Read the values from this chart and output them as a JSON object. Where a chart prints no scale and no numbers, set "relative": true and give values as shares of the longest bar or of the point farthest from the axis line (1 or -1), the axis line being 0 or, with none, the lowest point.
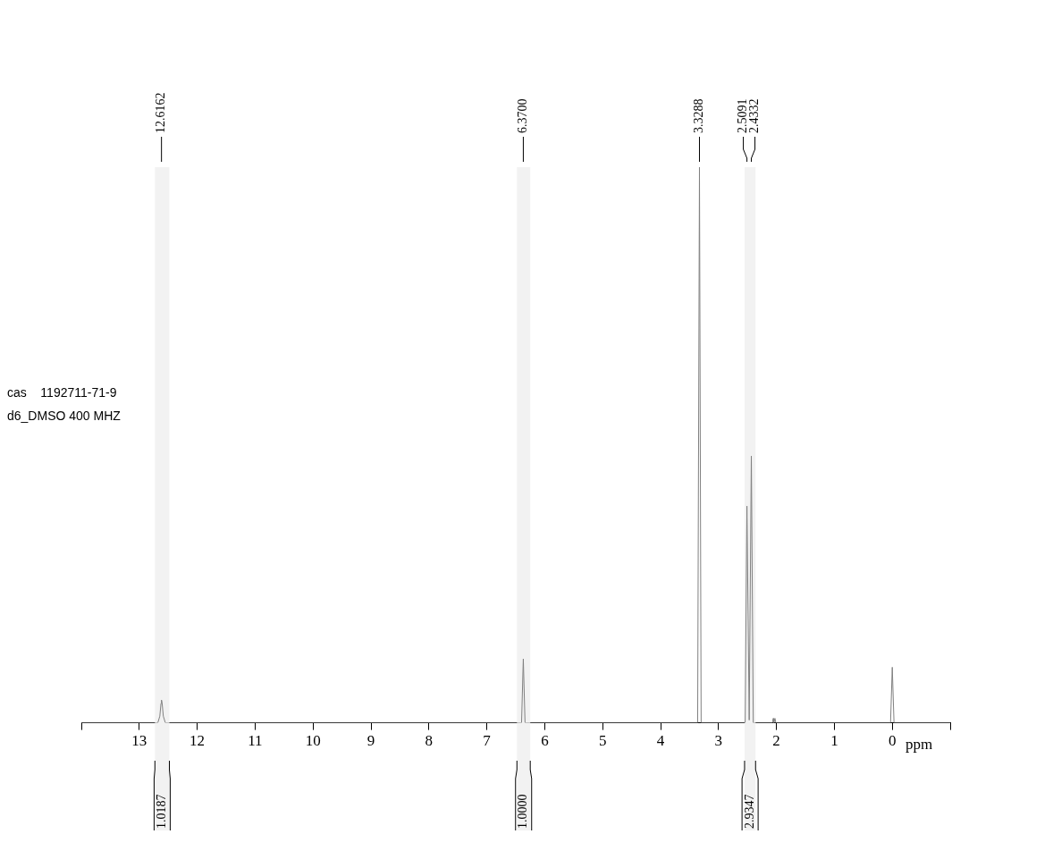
{
  "chart_data": {
    "type": "line",
    "relative": true,
    "xlabel": "ppm",
    "xlim": [
      14,
      -1
    ],
    "xticks": [
      {
        "value": 14,
        "label": null
      },
      13,
      12,
      11,
      10,
      9,
      8,
      7,
      6,
      5,
      4,
      3,
      2,
      1,
      0,
      {
        "value": -1,
        "label": null
      }
    ],
    "series": [
      {
        "color": "#808080",
        "x": [
          14,
          12.68,
          12.645,
          12.625,
          12.6162,
          12.605,
          12.585,
          12.55,
          6.4,
          6.37,
          6.34,
          3.36,
          3.3288,
          3.3,
          2.54,
          2.5091,
          2.47,
          2.4332,
          2.4,
          2.07,
          2.055,
          2.045,
          2.025,
          2.01,
          0.03,
          0,
          -0.03,
          -1
        ],
        "values": [
          0,
          0,
          0.012,
          0.035,
          0.041,
          0.035,
          0.012,
          0,
          0,
          0.115,
          0,
          0,
          1,
          0,
          0,
          0.39,
          0.005,
          0.48,
          0,
          0,
          0.008,
          0,
          0.008,
          0,
          0,
          0.1,
          0,
          0
        ]
      }
    ],
    "x2lim": [
      14,
      -1
    ],
    "x2ticks": [
      {
        "value": 12.6162,
        "label": "12.6162"
      },
      {
        "value": 6.37,
        "label": "6.3700"
      },
      {
        "value": 3.3288,
        "label": "3.3288"
      },
      {
        "value": 2.5091,
        "label": "2.5091"
      },
      {
        "value": 2.4332,
        "label": "2.4332"
      }
    ],
    "bands": [
      {
        "axis": "x",
        "from": 12.73,
        "to": 12.48,
        "label": "1.0187",
        "color": "#f2f2f2"
      },
      {
        "axis": "x",
        "from": 6.48,
        "to": 6.25,
        "label": "1.0000",
        "color": "#f2f2f2"
      },
      {
        "axis": "x",
        "from": 2.55,
        "to": 2.36,
        "label": "2.9347",
        "color": "#f2f2f2"
      }
    ],
    "annotations": [
      "cas    1192711-71-9",
      "d6_DMSO 400 MHZ"
    ],
    "grid": false,
    "legend": false,
    "marker": "none",
    "line_style": "solid"
  }
}
